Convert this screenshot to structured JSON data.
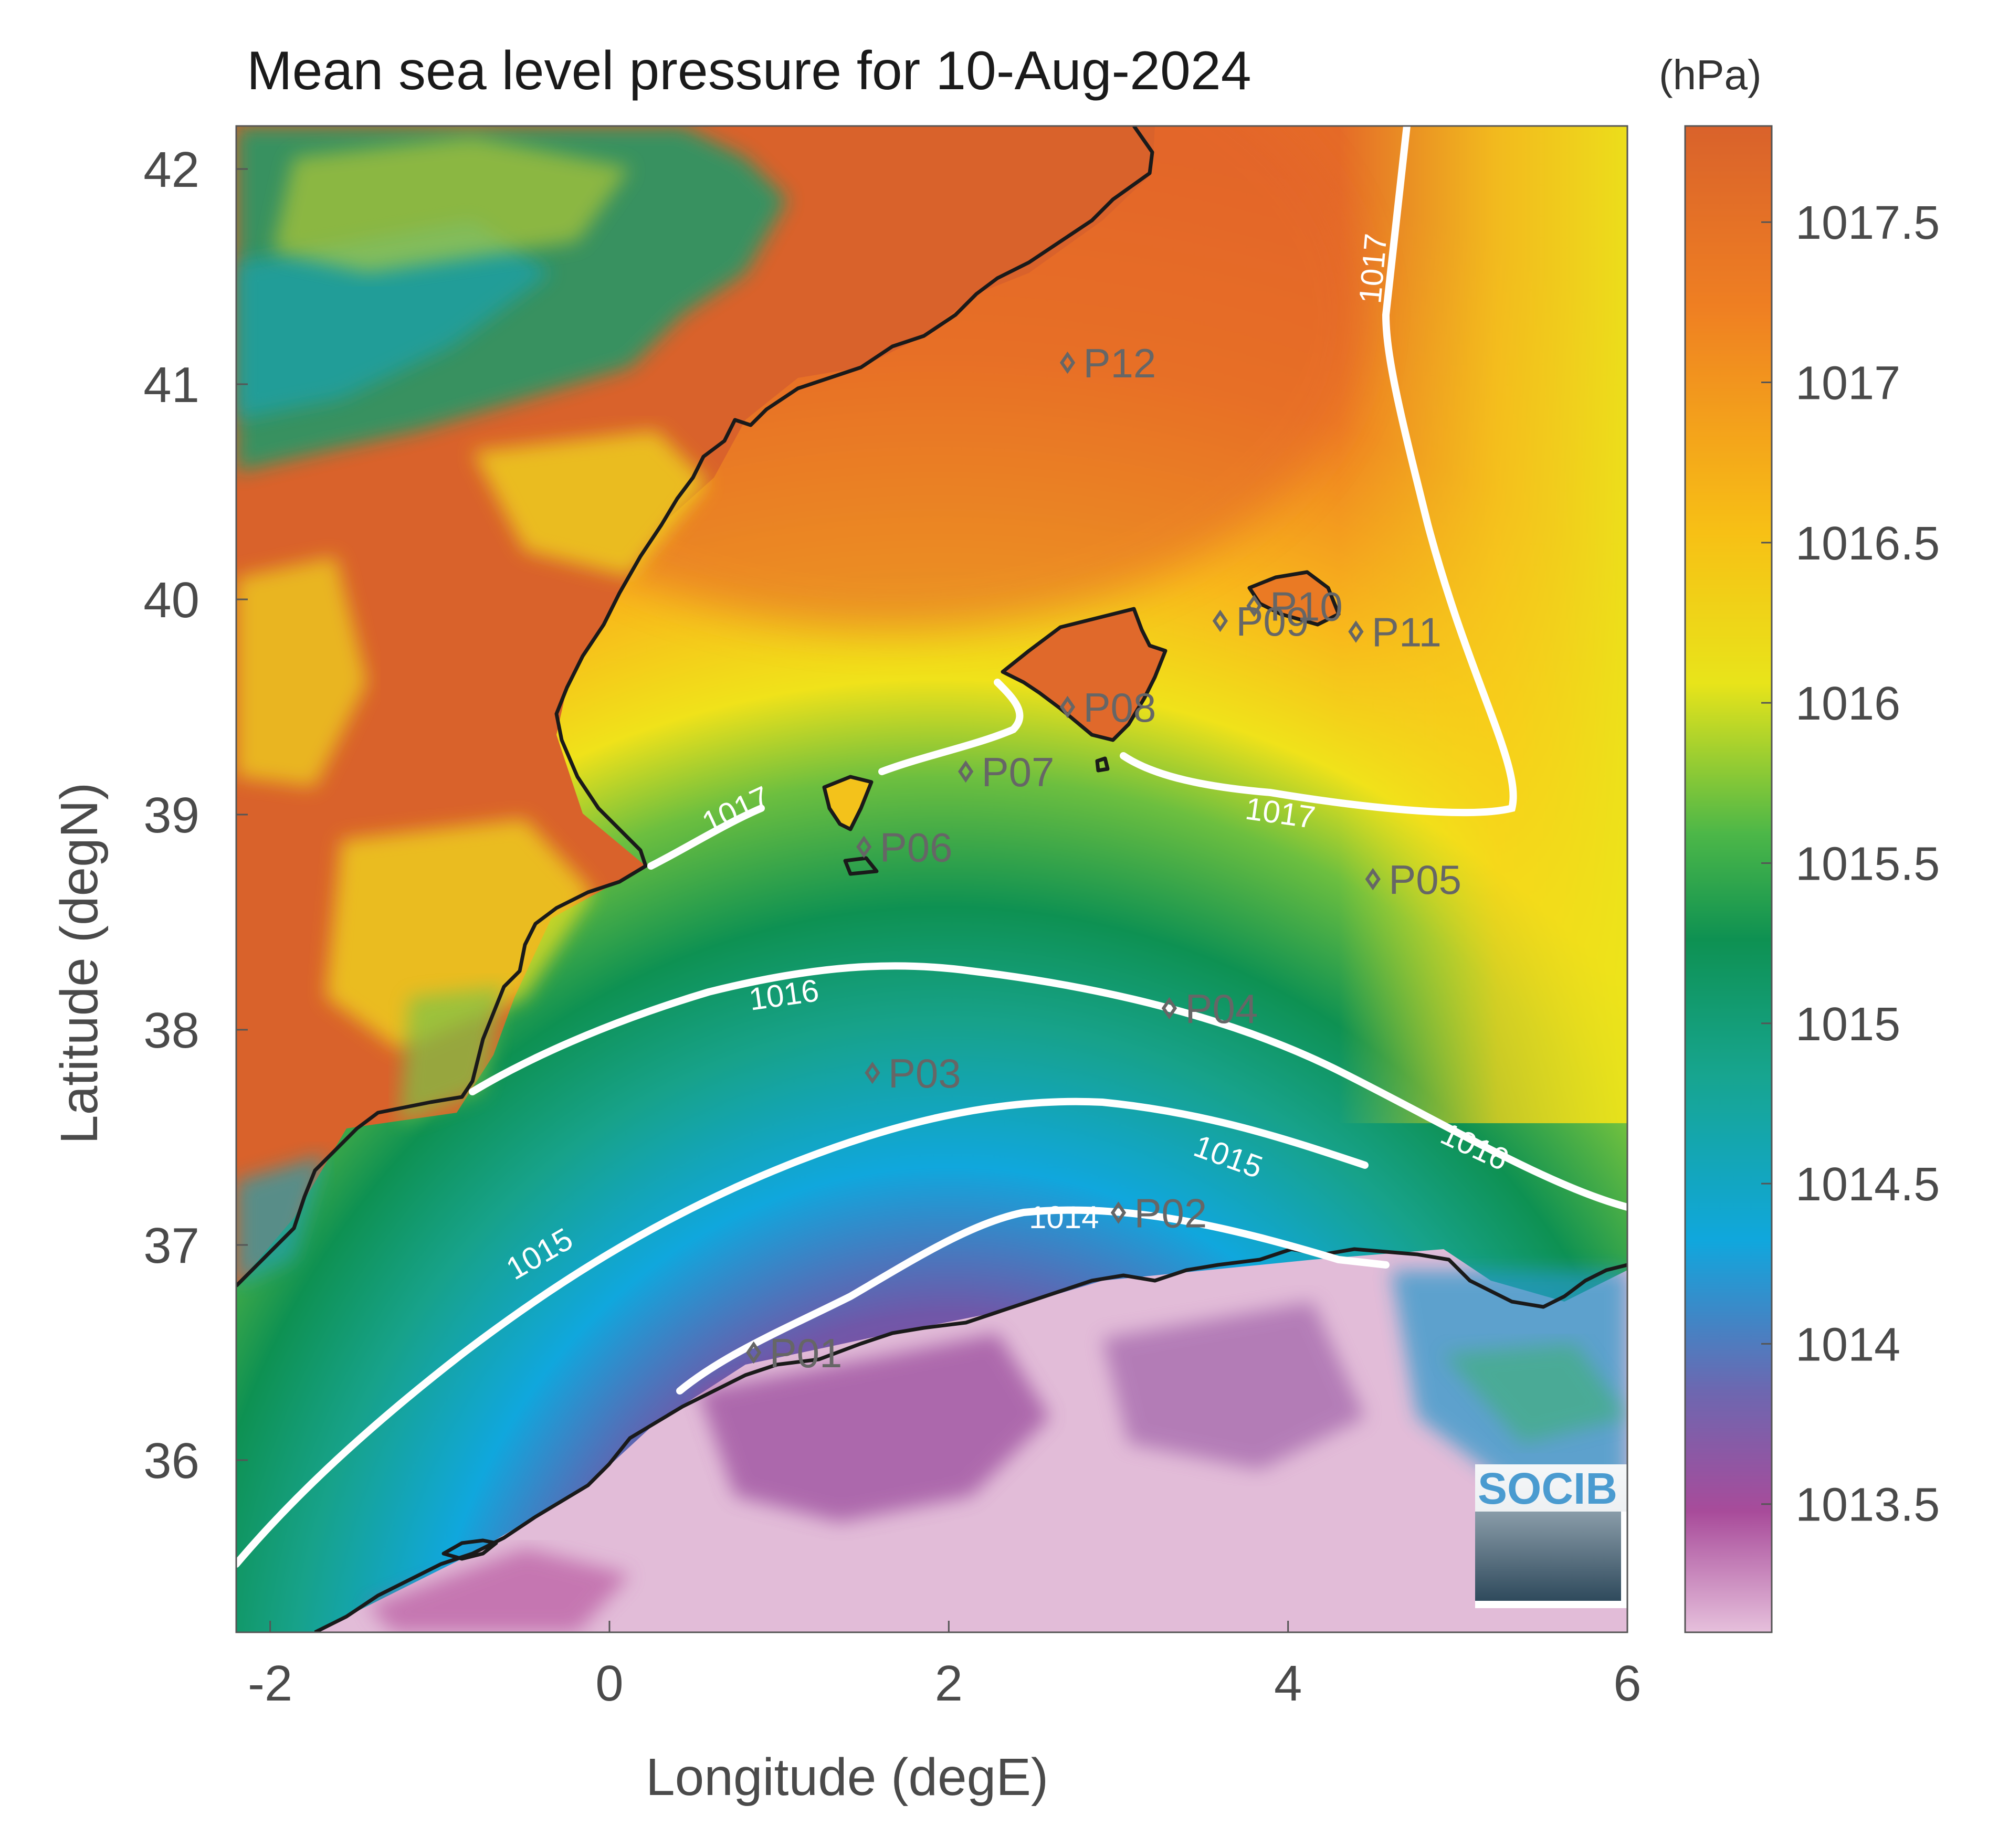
{
  "title": "Mean sea level pressure for 10-Aug-2024",
  "colorbar_unit": "(hPa)",
  "logo_text": "SOCIB",
  "colors": {
    "land_high": "#d9622b",
    "sea_high": "#ef7f22",
    "mid_yellow": "#f2e21a",
    "mid_green": "#0e9152",
    "mid_blue": "#10a7dd",
    "low_purple": "#8e4a9c",
    "low_pink": "#e5b8d6",
    "coast": "#1a1a1a",
    "contour": "#ffffff",
    "station": "#666666"
  },
  "chart_data": {
    "type": "map",
    "xlabel": "Longitude (degE)",
    "ylabel": "Latitude (degN)",
    "xlim": [
      -2.2,
      6
    ],
    "ylim": [
      35.2,
      42.2
    ],
    "xticks": [
      -2,
      0,
      2,
      4,
      6
    ],
    "xtick_labels": [
      "-2",
      "0",
      "2",
      "4",
      "6"
    ],
    "yticks": [
      36,
      37,
      38,
      39,
      40,
      41,
      42
    ],
    "ytick_labels": [
      "36",
      "37",
      "38",
      "39",
      "40",
      "41",
      "42"
    ],
    "colorbar": {
      "range": [
        1013.1,
        1017.8
      ],
      "ticks": [
        1013.5,
        1014,
        1014.5,
        1015,
        1015.5,
        1016,
        1016.5,
        1017,
        1017.5
      ],
      "tick_labels": [
        "1013.5",
        "1014",
        "1014.5",
        "1015",
        "1015.5",
        "1016",
        "1016.5",
        "1017",
        "1017.5"
      ]
    },
    "contour_labels": [
      {
        "text": "1014",
        "lon": 2.8,
        "lat": 37.05
      },
      {
        "text": "1015",
        "lon": -0.1,
        "lat": 36.95
      },
      {
        "text": "1015",
        "lon": 3.6,
        "lat": 37.35
      },
      {
        "text": "1016",
        "lon": 1.1,
        "lat": 38.15
      },
      {
        "text": "1016",
        "lon": 5.1,
        "lat": 37.55
      },
      {
        "text": "1017",
        "lon": 0.85,
        "lat": 38.95
      },
      {
        "text": "1017",
        "lon": 4.1,
        "lat": 38.95
      },
      {
        "text": "1017",
        "lon": 4.5,
        "lat": 41.55
      }
    ],
    "stations": [
      {
        "name": "P01",
        "lon": 0.85,
        "lat": 36.5
      },
      {
        "name": "P02",
        "lon": 3.0,
        "lat": 37.15
      },
      {
        "name": "P03",
        "lon": 1.55,
        "lat": 37.8
      },
      {
        "name": "P04",
        "lon": 3.3,
        "lat": 38.1
      },
      {
        "name": "P05",
        "lon": 4.5,
        "lat": 38.7
      },
      {
        "name": "P06",
        "lon": 1.5,
        "lat": 38.85
      },
      {
        "name": "P07",
        "lon": 2.1,
        "lat": 39.2
      },
      {
        "name": "P08",
        "lon": 2.7,
        "lat": 39.5
      },
      {
        "name": "P09",
        "lon": 3.6,
        "lat": 39.9
      },
      {
        "name": "P10",
        "lon": 3.8,
        "lat": 39.97
      },
      {
        "name": "P11",
        "lon": 4.4,
        "lat": 39.85
      },
      {
        "name": "P12",
        "lon": 2.7,
        "lat": 41.1
      }
    ]
  }
}
